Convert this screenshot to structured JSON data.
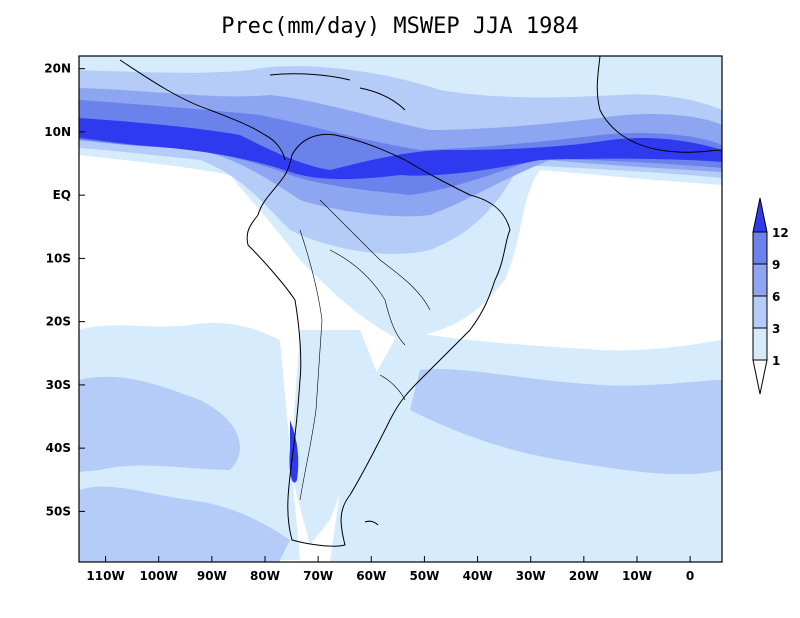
{
  "title": "Prec(mm/day) MSWEP JJA 1984",
  "axes": {
    "lon_ticks": [
      "110W",
      "100W",
      "90W",
      "80W",
      "70W",
      "60W",
      "50W",
      "40W",
      "30W",
      "20W",
      "10W",
      "0"
    ],
    "lat_ticks": [
      "20N",
      "10N",
      "EQ",
      "10S",
      "20S",
      "30S",
      "40S",
      "50S"
    ],
    "lon_values": [
      -110,
      -100,
      -90,
      -80,
      -70,
      -60,
      -50,
      -40,
      -30,
      -20,
      -10,
      0
    ],
    "lat_values": [
      20,
      10,
      0,
      -10,
      -20,
      -30,
      -40,
      -50
    ],
    "lon_range": [
      -115,
      6
    ],
    "lat_range": [
      -58,
      22
    ]
  },
  "colorbar": {
    "levels": [
      "1",
      "3",
      "6",
      "9",
      "12"
    ],
    "colors": [
      "#ffffff",
      "#d6ecfd",
      "#b4ccf7",
      "#8ea6f1",
      "#6b82ec",
      "#2f3af0"
    ],
    "extend": "both"
  },
  "colors": {
    "c1": "#d6ecfd",
    "c3": "#b4ccf7",
    "c6": "#8ea6f1",
    "c9": "#6b82ec",
    "c12": "#2f3af0"
  }
}
